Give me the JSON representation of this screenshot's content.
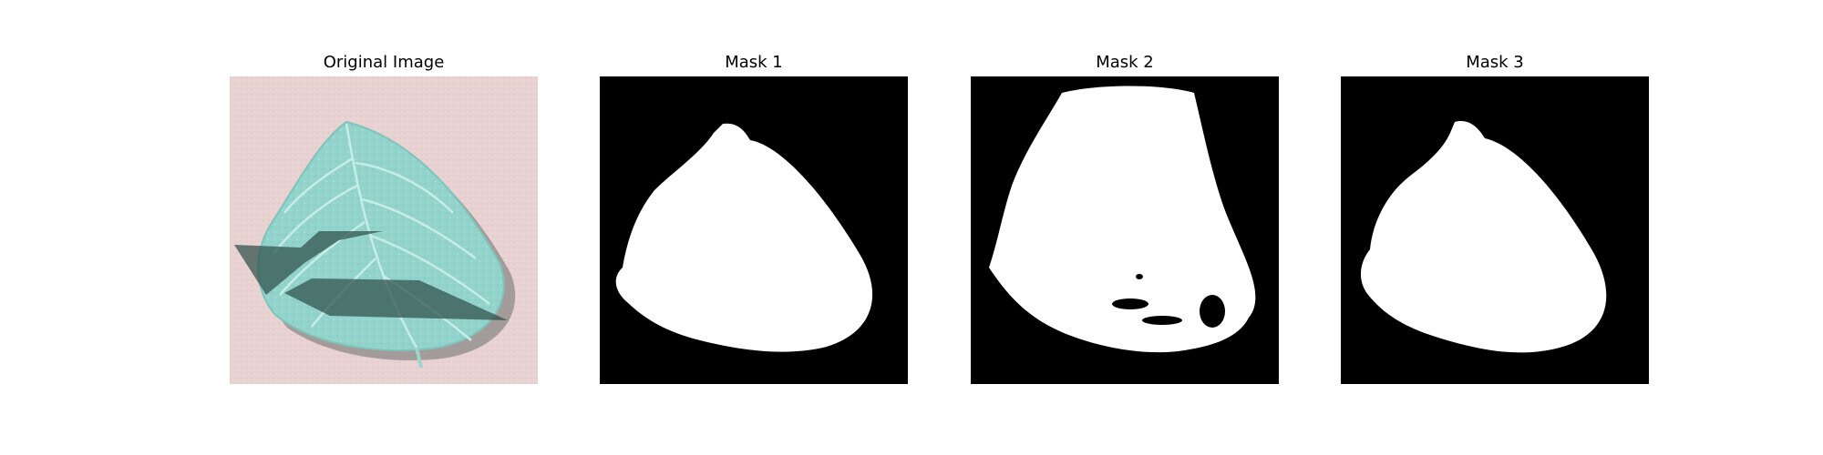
{
  "figure": {
    "panels": [
      {
        "title": "Original Image",
        "kind": "photo"
      },
      {
        "title": "Mask 1",
        "kind": "mask"
      },
      {
        "title": "Mask 2",
        "kind": "mask"
      },
      {
        "title": "Mask 3",
        "kind": "mask"
      }
    ]
  },
  "colors": {
    "background_photo": "#e6cfcf",
    "leaf": "#8fd0c8",
    "leaf_dark": "#6fb3ab",
    "shadow_overlay": "#2f4f4a",
    "mask_bg": "#000000",
    "mask_fg": "#ffffff"
  }
}
